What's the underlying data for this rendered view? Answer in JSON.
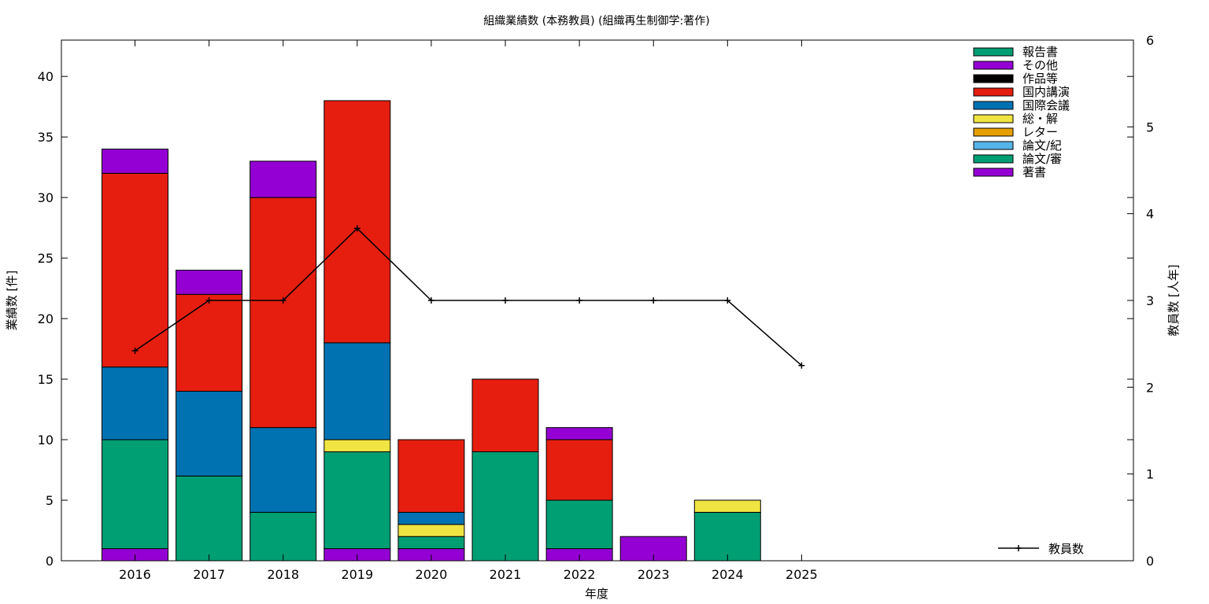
{
  "chart_data": {
    "type": "bar",
    "stacked": true,
    "title": "組織業績数 (本務教員) (組織再生制御学:著作)",
    "xlabel": "年度",
    "ylabel": "業績数 [件]",
    "y2label": "教員数 [人年]",
    "categories": [
      "2016",
      "2017",
      "2018",
      "2019",
      "2020",
      "2021",
      "2022",
      "2023",
      "2024",
      "2025"
    ],
    "y_ticks": [
      0,
      5,
      10,
      15,
      20,
      25,
      30,
      35,
      40
    ],
    "y2_ticks": [
      0,
      1,
      2,
      3,
      4,
      5,
      6
    ],
    "ylim": [
      0,
      43
    ],
    "y2lim": [
      0,
      6
    ],
    "grid": false,
    "legend_position": "top-right",
    "series": [
      {
        "name": "著書",
        "color": "#9400D3",
        "values": [
          1,
          0,
          0,
          1,
          1,
          0,
          1,
          2,
          0,
          0
        ]
      },
      {
        "name": "論文/審",
        "color": "#009E73",
        "values": [
          9,
          7,
          4,
          8,
          1,
          9,
          4,
          0,
          4,
          0
        ]
      },
      {
        "name": "論文/紀",
        "color": "#56B4E9",
        "values": [
          0,
          0,
          0,
          0,
          0,
          0,
          0,
          0,
          0,
          0
        ]
      },
      {
        "name": "レター",
        "color": "#E69F00",
        "values": [
          0,
          0,
          0,
          0,
          0,
          0,
          0,
          0,
          0,
          0
        ]
      },
      {
        "name": "総・解",
        "color": "#F0E442",
        "values": [
          0,
          0,
          0,
          1,
          1,
          0,
          0,
          0,
          1,
          0
        ]
      },
      {
        "name": "国際会議",
        "color": "#0072B2",
        "values": [
          6,
          7,
          7,
          8,
          1,
          0,
          0,
          0,
          0,
          0
        ]
      },
      {
        "name": "国内講演",
        "color": "#E51E10",
        "values": [
          16,
          8,
          19,
          20,
          6,
          6,
          5,
          0,
          0,
          0
        ]
      },
      {
        "name": "作品等",
        "color": "#000000",
        "values": [
          0,
          0,
          0,
          0,
          0,
          0,
          0,
          0,
          0,
          0
        ]
      },
      {
        "name": "その他",
        "color": "#9400D3",
        "values": [
          2,
          2,
          3,
          0,
          0,
          0,
          1,
          0,
          0,
          0
        ]
      },
      {
        "name": "報告書",
        "color": "#009E73",
        "values": [
          0,
          0,
          0,
          0,
          0,
          0,
          0,
          0,
          0,
          0
        ]
      }
    ],
    "line_series": {
      "name": "教員数",
      "axis": "y2",
      "color": "#000000",
      "values": [
        2.42,
        3,
        3,
        3.83,
        3,
        3,
        3,
        3,
        3,
        2.25
      ]
    }
  }
}
